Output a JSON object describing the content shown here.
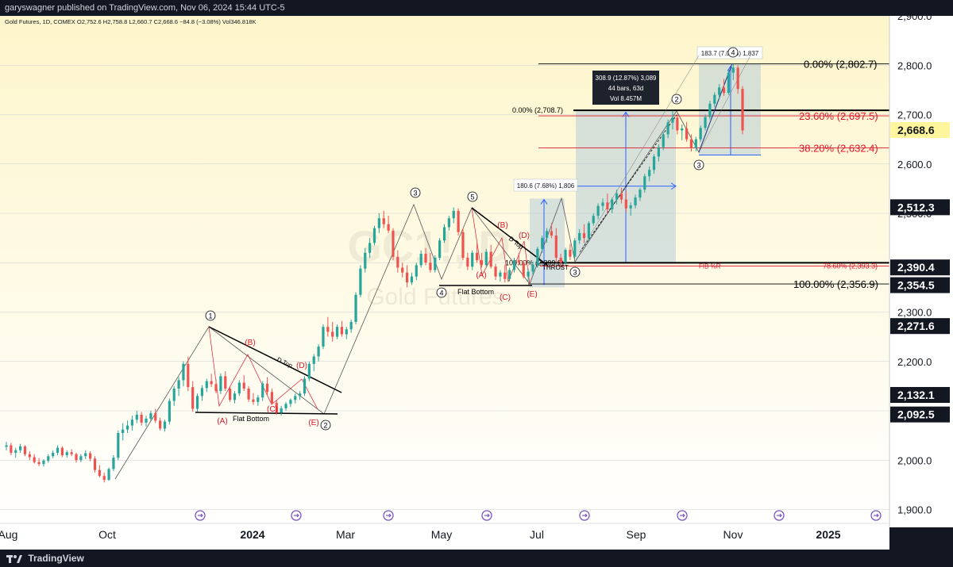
{
  "header": {
    "publisher": "garyswagner published on TradingView.com, Nov 06, 2024 15:44 UTC-5"
  },
  "footer": {
    "brand": "TradingView"
  },
  "chart_data": {
    "type": "candlestick",
    "legend": "Gold Futures, 1D, COMEX  O2,752.6  H2,758.8  L2,660.7  C2,668.6  −84.8 (−3.08%)  Vol346.818K",
    "watermark": [
      "GC1!, D",
      "Gold Futures"
    ],
    "xaxis": {
      "ticks": [
        {
          "label": "Aug",
          "major": false
        },
        {
          "label": "Oct",
          "major": false
        },
        {
          "label": "2024",
          "major": true
        },
        {
          "label": "Mar",
          "major": false
        },
        {
          "label": "May",
          "major": false
        },
        {
          "label": "Jul",
          "major": false
        },
        {
          "label": "Sep",
          "major": false
        },
        {
          "label": "Nov",
          "major": false
        },
        {
          "label": "2025",
          "major": true
        }
      ]
    },
    "yaxis": {
      "range": [
        1870,
        2920
      ],
      "ticks": [
        "1,900.0",
        "2,000.0",
        "2,100.0",
        "2,200.0",
        "2,300.0",
        "2,400.0",
        "2,500.0",
        "2,600.0",
        "2,700.0",
        "2,800.0",
        "2,900.0"
      ]
    },
    "price_labels": [
      {
        "value": 2668.6,
        "label": "2,668.6",
        "kind": "current"
      },
      {
        "value": 2512.3,
        "label": "2,512.3",
        "kind": "dark"
      },
      {
        "value": 2390.4,
        "label": "2,390.4",
        "kind": "dark"
      },
      {
        "value": 2354.5,
        "label": "2,354.5",
        "kind": "dark"
      },
      {
        "value": 2271.6,
        "label": "2,271.6",
        "kind": "dark"
      },
      {
        "value": 2132.1,
        "label": "2,132.1",
        "kind": "dark"
      },
      {
        "value": 2092.5,
        "label": "2,092.5",
        "kind": "dark"
      }
    ],
    "fibonacci": [
      {
        "label": "0.00% (2,802.7)",
        "value": 2802.7,
        "color": "#000000"
      },
      {
        "label": "23.60% (2,697.5)",
        "value": 2697.5,
        "color": "#e0162b"
      },
      {
        "label": "38.20% (2,632.4)",
        "value": 2632.4,
        "color": "#e0162b"
      },
      {
        "label": "0.00% (2,708.7)",
        "value": 2708.7,
        "color": "#000000"
      },
      {
        "label": "78.60% (2,393.3)",
        "value": 2393.3,
        "color": "#e0162b"
      },
      {
        "label": "100.00% (2,356.9)",
        "value": 2356.9,
        "color": "#000000"
      },
      {
        "label": "100.00% (2,399.8)",
        "value": 2399.8,
        "color": "#000000"
      }
    ],
    "measure_boxes": [
      {
        "label": "180.6 (7.68%) 1,806"
      },
      {
        "label": "308.9 (12.87%) 3,089",
        "line2": "44 bars, 63d",
        "line3": "Vol 8.457M"
      },
      {
        "label": "183.7 (7.02%) 1,837"
      }
    ],
    "annotations": {
      "waves": [
        "1",
        "2",
        "3",
        "4",
        "5",
        "3",
        "2",
        "3",
        "4"
      ],
      "abcde": [
        "(A)",
        "(B)",
        "(C)",
        "(D)",
        "(E)"
      ],
      "texts": [
        "D Top",
        "Flat Bottom",
        "THROST",
        "FIB %R"
      ]
    },
    "candles": [
      [
        2027,
        2037,
        2020,
        2030
      ],
      [
        2030,
        2035,
        2010,
        2015
      ],
      [
        2015,
        2025,
        2005,
        2020
      ],
      [
        2020,
        2033,
        2015,
        2028
      ],
      [
        2028,
        2030,
        2008,
        2012
      ],
      [
        2012,
        2018,
        2000,
        2006
      ],
      [
        2006,
        2012,
        1993,
        1996
      ],
      [
        1996,
        2004,
        1988,
        1992
      ],
      [
        1992,
        2002,
        1987,
        1999
      ],
      [
        1999,
        2012,
        1995,
        2008
      ],
      [
        2008,
        2020,
        2004,
        2015
      ],
      [
        2015,
        2030,
        2010,
        2025
      ],
      [
        2025,
        2028,
        2006,
        2010
      ],
      [
        2010,
        2020,
        2005,
        2016
      ],
      [
        2016,
        2022,
        2008,
        2012
      ],
      [
        2012,
        2015,
        1995,
        2000
      ],
      [
        2000,
        2012,
        1996,
        2008
      ],
      [
        2008,
        2020,
        2002,
        2014
      ],
      [
        2014,
        2018,
        1998,
        2003
      ],
      [
        2003,
        2008,
        1975,
        1980
      ],
      [
        1980,
        1990,
        1965,
        1968
      ],
      [
        1968,
        1975,
        1955,
        1960
      ],
      [
        1960,
        1985,
        1958,
        1982
      ],
      [
        1982,
        2010,
        1978,
        2005
      ],
      [
        2005,
        2060,
        2000,
        2055
      ],
      [
        2055,
        2075,
        2040,
        2062
      ],
      [
        2062,
        2080,
        2055,
        2070
      ],
      [
        2070,
        2090,
        2060,
        2082
      ],
      [
        2082,
        2100,
        2075,
        2092
      ],
      [
        2092,
        2098,
        2070,
        2076
      ],
      [
        2076,
        2090,
        2068,
        2084
      ],
      [
        2084,
        2100,
        2080,
        2095
      ],
      [
        2095,
        2104,
        2075,
        2080
      ],
      [
        2080,
        2086,
        2060,
        2064
      ],
      [
        2064,
        2082,
        2058,
        2078
      ],
      [
        2078,
        2125,
        2072,
        2120
      ],
      [
        2120,
        2150,
        2110,
        2145
      ],
      [
        2145,
        2168,
        2130,
        2162
      ],
      [
        2162,
        2200,
        2150,
        2195
      ],
      [
        2195,
        2210,
        2140,
        2148
      ],
      [
        2148,
        2160,
        2098,
        2104
      ],
      [
        2104,
        2135,
        2098,
        2130
      ],
      [
        2130,
        2152,
        2120,
        2146
      ],
      [
        2146,
        2165,
        2138,
        2160
      ],
      [
        2160,
        2175,
        2148,
        2154
      ],
      [
        2154,
        2164,
        2136,
        2140
      ],
      [
        2140,
        2176,
        2134,
        2170
      ],
      [
        2170,
        2180,
        2140,
        2145
      ],
      [
        2145,
        2150,
        2118,
        2122
      ],
      [
        2122,
        2140,
        2115,
        2135
      ],
      [
        2135,
        2162,
        2130,
        2157
      ],
      [
        2157,
        2172,
        2140,
        2145
      ],
      [
        2145,
        2150,
        2118,
        2123
      ],
      [
        2123,
        2136,
        2112,
        2118
      ],
      [
        2118,
        2132,
        2110,
        2127
      ],
      [
        2127,
        2160,
        2120,
        2155
      ],
      [
        2155,
        2168,
        2132,
        2138
      ],
      [
        2138,
        2145,
        2112,
        2116
      ],
      [
        2116,
        2122,
        2092,
        2096
      ],
      [
        2096,
        2110,
        2090,
        2105
      ],
      [
        2105,
        2118,
        2100,
        2114
      ],
      [
        2114,
        2125,
        2108,
        2122
      ],
      [
        2122,
        2135,
        2115,
        2130
      ],
      [
        2130,
        2140,
        2122,
        2135
      ],
      [
        2135,
        2170,
        2130,
        2165
      ],
      [
        2165,
        2200,
        2160,
        2195
      ],
      [
        2195,
        2215,
        2180,
        2210
      ],
      [
        2210,
        2235,
        2200,
        2230
      ],
      [
        2230,
        2275,
        2225,
        2270
      ],
      [
        2270,
        2290,
        2250,
        2260
      ],
      [
        2260,
        2280,
        2240,
        2250
      ],
      [
        2250,
        2275,
        2245,
        2270
      ],
      [
        2270,
        2282,
        2250,
        2255
      ],
      [
        2255,
        2270,
        2245,
        2265
      ],
      [
        2265,
        2285,
        2258,
        2280
      ],
      [
        2280,
        2340,
        2275,
        2335
      ],
      [
        2335,
        2395,
        2330,
        2388
      ],
      [
        2388,
        2430,
        2380,
        2420
      ],
      [
        2420,
        2450,
        2410,
        2440
      ],
      [
        2440,
        2475,
        2435,
        2470
      ],
      [
        2470,
        2500,
        2460,
        2490
      ],
      [
        2490,
        2505,
        2470,
        2478
      ],
      [
        2478,
        2495,
        2460,
        2465
      ],
      [
        2465,
        2470,
        2405,
        2412
      ],
      [
        2412,
        2425,
        2380,
        2390
      ],
      [
        2390,
        2400,
        2370,
        2380
      ],
      [
        2380,
        2395,
        2350,
        2360
      ],
      [
        2360,
        2380,
        2355,
        2372
      ],
      [
        2372,
        2400,
        2365,
        2395
      ],
      [
        2395,
        2425,
        2390,
        2418
      ],
      [
        2418,
        2430,
        2395,
        2400
      ],
      [
        2400,
        2420,
        2380,
        2385
      ],
      [
        2385,
        2415,
        2380,
        2410
      ],
      [
        2410,
        2450,
        2405,
        2445
      ],
      [
        2445,
        2478,
        2440,
        2472
      ],
      [
        2472,
        2495,
        2465,
        2490
      ],
      [
        2490,
        2512,
        2480,
        2505
      ],
      [
        2505,
        2510,
        2455,
        2462
      ],
      [
        2462,
        2470,
        2405,
        2410
      ],
      [
        2410,
        2420,
        2385,
        2392
      ],
      [
        2392,
        2425,
        2385,
        2420
      ],
      [
        2420,
        2440,
        2400,
        2405
      ],
      [
        2405,
        2420,
        2390,
        2395
      ],
      [
        2395,
        2428,
        2390,
        2422
      ],
      [
        2422,
        2436,
        2388,
        2392
      ],
      [
        2392,
        2398,
        2365,
        2372
      ],
      [
        2372,
        2385,
        2362,
        2380
      ],
      [
        2380,
        2395,
        2360,
        2367
      ],
      [
        2367,
        2390,
        2362,
        2385
      ],
      [
        2385,
        2410,
        2380,
        2405
      ],
      [
        2405,
        2420,
        2395,
        2400
      ],
      [
        2400,
        2405,
        2368,
        2372
      ],
      [
        2372,
        2388,
        2362,
        2382
      ],
      [
        2382,
        2402,
        2376,
        2396
      ],
      [
        2396,
        2432,
        2390,
        2428
      ],
      [
        2428,
        2455,
        2420,
        2450
      ],
      [
        2450,
        2470,
        2440,
        2464
      ],
      [
        2464,
        2480,
        2450,
        2455
      ],
      [
        2455,
        2470,
        2400,
        2410
      ],
      [
        2410,
        2418,
        2390,
        2400
      ],
      [
        2400,
        2430,
        2396,
        2426
      ],
      [
        2426,
        2438,
        2405,
        2412
      ],
      [
        2412,
        2450,
        2408,
        2445
      ],
      [
        2445,
        2468,
        2438,
        2460
      ],
      [
        2460,
        2478,
        2440,
        2450
      ],
      [
        2450,
        2484,
        2445,
        2480
      ],
      [
        2480,
        2500,
        2475,
        2495
      ],
      [
        2495,
        2520,
        2488,
        2515
      ],
      [
        2515,
        2530,
        2505,
        2522
      ],
      [
        2522,
        2540,
        2500,
        2508
      ],
      [
        2508,
        2532,
        2500,
        2528
      ],
      [
        2528,
        2548,
        2518,
        2540
      ],
      [
        2540,
        2552,
        2520,
        2528
      ],
      [
        2528,
        2545,
        2502,
        2510
      ],
      [
        2510,
        2522,
        2495,
        2516
      ],
      [
        2516,
        2538,
        2510,
        2532
      ],
      [
        2532,
        2552,
        2525,
        2548
      ],
      [
        2548,
        2580,
        2542,
        2575
      ],
      [
        2575,
        2595,
        2565,
        2588
      ],
      [
        2588,
        2620,
        2580,
        2615
      ],
      [
        2615,
        2640,
        2605,
        2634
      ],
      [
        2634,
        2665,
        2628,
        2660
      ],
      [
        2660,
        2690,
        2652,
        2684
      ],
      [
        2684,
        2708,
        2670,
        2694
      ],
      [
        2694,
        2702,
        2660,
        2668
      ],
      [
        2668,
        2680,
        2648,
        2672
      ],
      [
        2672,
        2685,
        2645,
        2650
      ],
      [
        2650,
        2660,
        2625,
        2632
      ],
      [
        2632,
        2655,
        2626,
        2650
      ],
      [
        2650,
        2678,
        2645,
        2673
      ],
      [
        2673,
        2700,
        2668,
        2695
      ],
      [
        2695,
        2728,
        2690,
        2722
      ],
      [
        2722,
        2745,
        2715,
        2740
      ],
      [
        2740,
        2762,
        2730,
        2755
      ],
      [
        2755,
        2772,
        2738,
        2744
      ],
      [
        2744,
        2790,
        2740,
        2785
      ],
      [
        2785,
        2802,
        2770,
        2795
      ],
      [
        2795,
        2800,
        2742,
        2752
      ],
      [
        2752,
        2758,
        2660,
        2668
      ]
    ]
  }
}
